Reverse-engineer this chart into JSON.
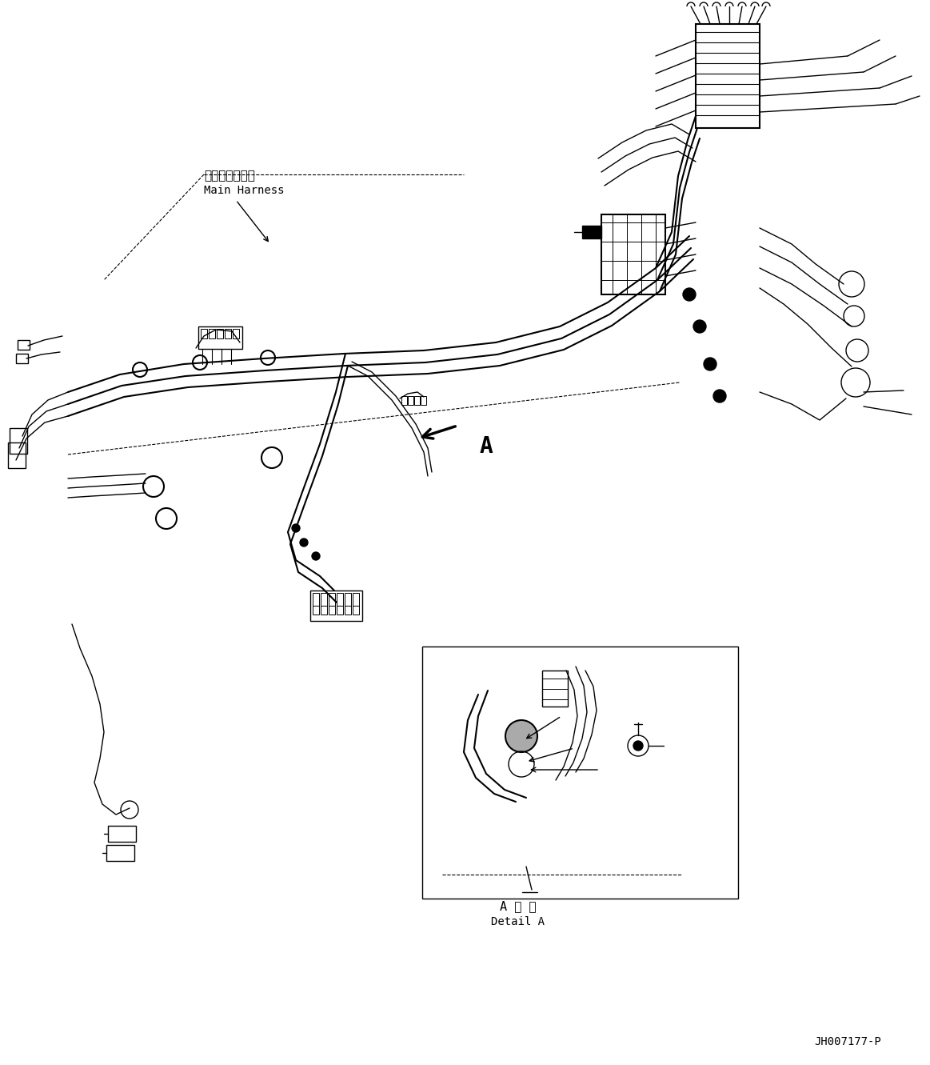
{
  "figure_width": 11.63,
  "figure_height": 13.31,
  "dpi": 100,
  "bg_color": "#ffffff",
  "line_color": "#000000",
  "label_japanese_1": "メインハーネス",
  "label_english_1": "Main Harness",
  "label_detail_japanese": "A 詳 細",
  "label_detail_english": "Detail A",
  "part_number": "JH007177-P",
  "arrow_label": "A"
}
